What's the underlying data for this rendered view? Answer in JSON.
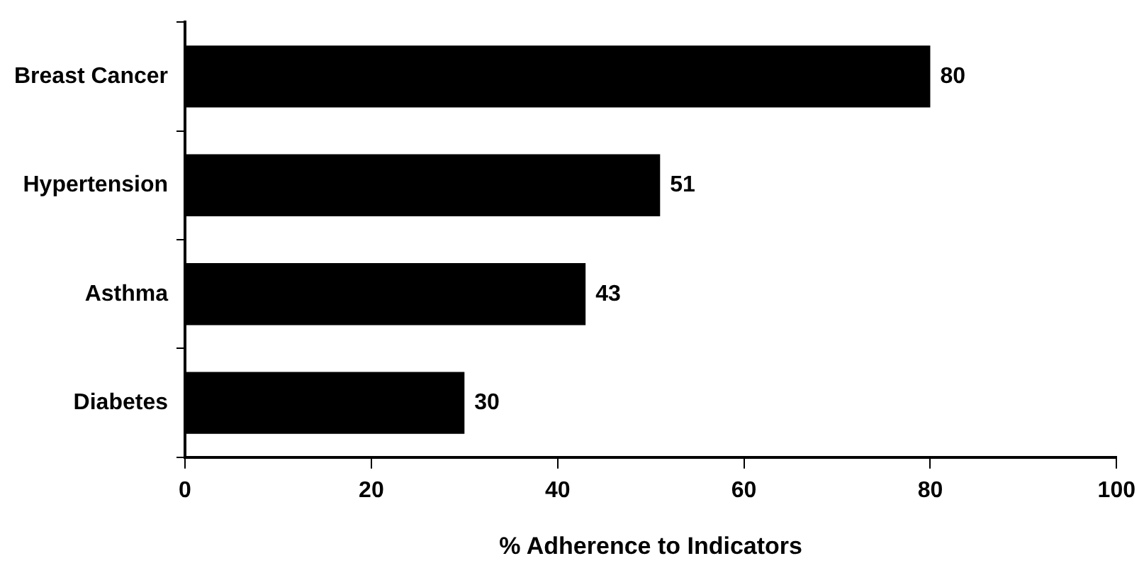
{
  "chart_data": {
    "type": "bar",
    "orientation": "horizontal",
    "categories": [
      "Breast Cancer",
      "Hypertension",
      "Asthma",
      "Diabetes"
    ],
    "values": [
      80,
      51,
      43,
      30
    ],
    "color": "#000000",
    "xlim": [
      0,
      100
    ],
    "xticks": [
      0,
      20,
      40,
      60,
      80,
      100
    ],
    "xlabel": "% Adherence to Indicators",
    "data_labels": true,
    "grid": false,
    "legend": false
  }
}
